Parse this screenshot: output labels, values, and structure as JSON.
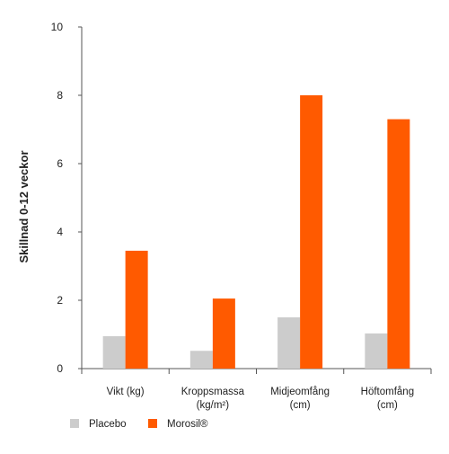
{
  "chart_data": {
    "type": "bar",
    "ylabel": "Skillnad 0-12 veckor",
    "xlabel": "",
    "ylim": [
      0,
      10
    ],
    "yticks": [
      0,
      2,
      4,
      6,
      8,
      10
    ],
    "categories": [
      [
        "Vikt (kg)"
      ],
      [
        "Kroppsmassa",
        "(kg/m²)"
      ],
      [
        "Midjeomfång",
        "(cm)"
      ],
      [
        "Höftomfång",
        "(cm)"
      ]
    ],
    "series": [
      {
        "name": "Placebo",
        "color": "#cccccc",
        "values": [
          0.95,
          0.52,
          1.5,
          1.03
        ]
      },
      {
        "name": "Morosil®",
        "color": "#ff5a00",
        "values": [
          3.45,
          2.05,
          8.0,
          7.3
        ]
      }
    ],
    "legend_position": "bottom-left",
    "grid": false
  }
}
